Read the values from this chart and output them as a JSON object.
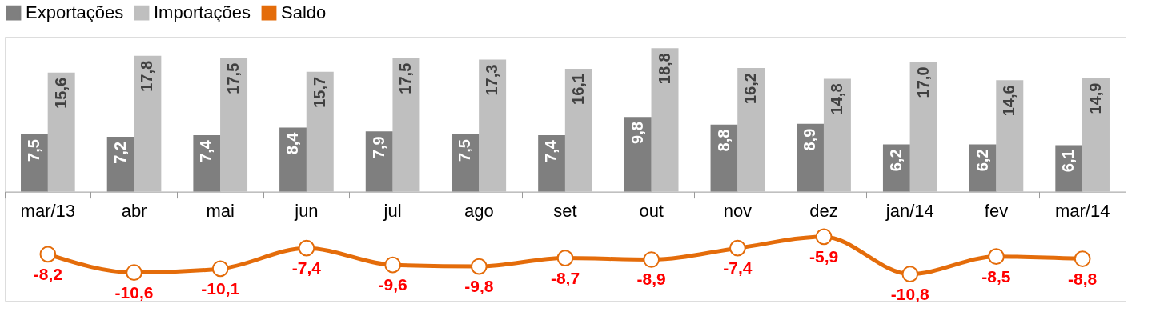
{
  "chart_data": {
    "type": "bar",
    "categories": [
      "mar/13",
      "abr",
      "mai",
      "jun",
      "jul",
      "ago",
      "set",
      "out",
      "nov",
      "dez",
      "jan/14",
      "fev",
      "mar/14"
    ],
    "series": [
      {
        "name": "Exportações",
        "color": "#7f7f7f",
        "values": [
          7.5,
          7.2,
          7.4,
          8.4,
          7.9,
          7.5,
          7.4,
          9.8,
          8.8,
          8.9,
          6.2,
          6.2,
          6.1
        ],
        "value_labels": [
          "7,5",
          "7,2",
          "7,4",
          "8,4",
          "7,9",
          "7,5",
          "7,4",
          "9,8",
          "8,8",
          "8,9",
          "6,2",
          "6,2",
          "6,1"
        ]
      },
      {
        "name": "Importações",
        "color": "#bfbfbf",
        "values": [
          15.6,
          17.8,
          17.5,
          15.7,
          17.5,
          17.3,
          16.1,
          18.8,
          16.2,
          14.8,
          17.0,
          14.6,
          14.9
        ],
        "value_labels": [
          "15,6",
          "17,8",
          "17,5",
          "15,7",
          "17,5",
          "17,3",
          "16,1",
          "18,8",
          "16,2",
          "14,8",
          "17,0",
          "14,6",
          "14,9"
        ]
      },
      {
        "name": "Saldo",
        "type": "line",
        "color": "#e46c0a",
        "values": [
          -8.2,
          -10.6,
          -10.1,
          -7.4,
          -9.6,
          -9.8,
          -8.7,
          -8.9,
          -7.4,
          -5.9,
          -10.8,
          -8.5,
          -8.8
        ],
        "value_labels": [
          "-8,2",
          "-10,6",
          "-10,1",
          "-7,4",
          "-9,6",
          "-9,8",
          "-8,7",
          "-8,9",
          "-7,4",
          "-5,9",
          "-10,8",
          "-8,5",
          "-8,8"
        ]
      }
    ],
    "legend": "top",
    "grid": false,
    "marker": "circle",
    "line_style": "solid"
  }
}
